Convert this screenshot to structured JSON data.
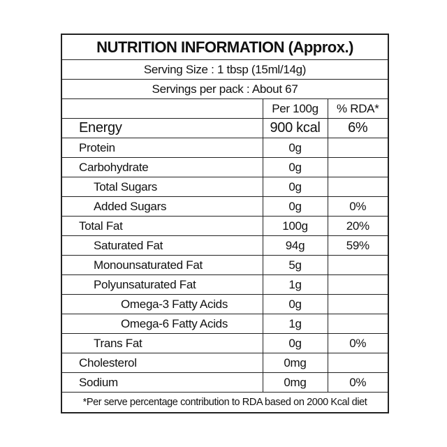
{
  "title": "NUTRITION INFORMATION (Approx.)",
  "serving_size": "Serving Size : 1 tbsp (15ml/14g)",
  "servings_per_pack": "Servings per pack : About 67",
  "table": {
    "columns": [
      "Per 100g",
      "% RDA*"
    ],
    "rows": [
      {
        "name": "Energy",
        "per_100g": "900 kcal",
        "rda": "6%"
      },
      {
        "name": "Protein",
        "per_100g": "0g"
      },
      {
        "name": "Carbohydrate",
        "per_100g": "0g"
      },
      {
        "name": "Total Sugars",
        "per_100g": "0g"
      },
      {
        "name": "Added Sugars",
        "per_100g": "0g",
        "rda": "0%"
      },
      {
        "name": "Total Fat",
        "per_100g": "100g",
        "rda": "20%"
      },
      {
        "name": "Saturated Fat",
        "per_100g": "94g",
        "rda": "59%"
      },
      {
        "name": "Monounsaturated Fat",
        "per_100g": "5g"
      },
      {
        "name": "Polyunsaturated Fat",
        "per_100g": "1g"
      },
      {
        "name": "Omega-3 Fatty Acids",
        "per_100g": "0g"
      },
      {
        "name": "Omega-6 Fatty Acids",
        "per_100g": "1g"
      },
      {
        "name": "Trans Fat",
        "per_100g": "0g",
        "rda": "0%"
      },
      {
        "name": "Cholesterol",
        "per_100g": "0mg"
      },
      {
        "name": "Sodium",
        "per_100g": "0mg",
        "rda": "0%"
      }
    ]
  },
  "footnote": "*Per serve percentage contribution to RDA based on 2000 Kcal diet"
}
